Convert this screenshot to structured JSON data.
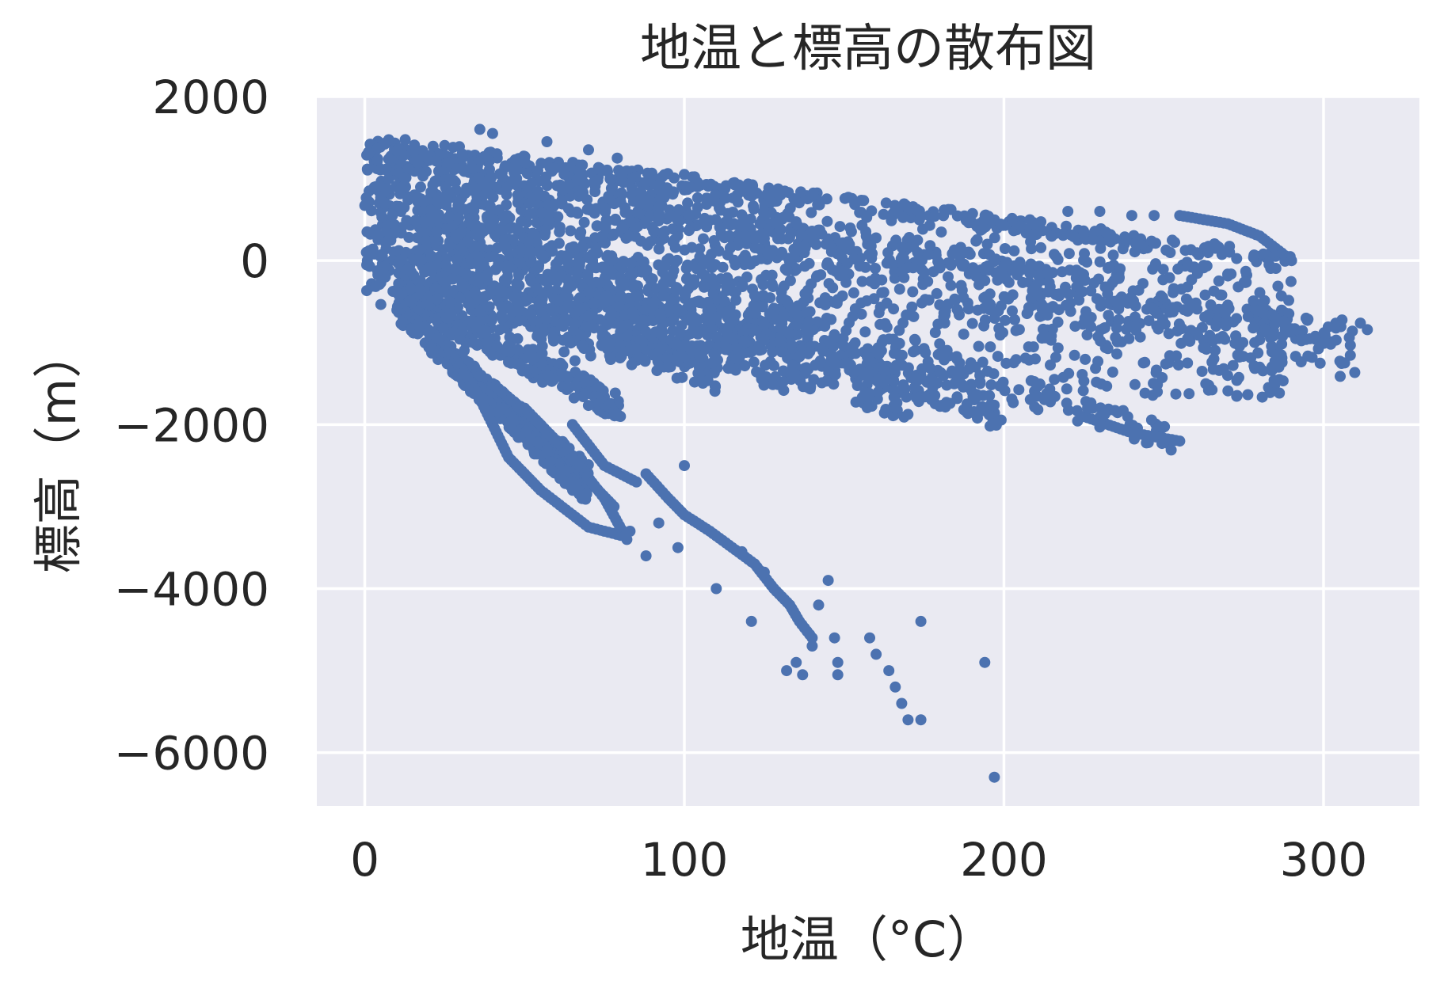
{
  "chart_data": {
    "type": "scatter",
    "title": "地温と標高の散布図",
    "xlabel": "地温（°C）",
    "ylabel": "標高（m）",
    "xlim": [
      -15,
      330
    ],
    "ylim": [
      -6650,
      2000
    ],
    "xticks": [
      0,
      100,
      200,
      300
    ],
    "yticks": [
      2000,
      0,
      -2000,
      -4000,
      -6000
    ],
    "xtick_labels": [
      "0",
      "100",
      "200",
      "300"
    ],
    "ytick_labels": [
      "2000",
      "0",
      "−2000",
      "−4000",
      "−6000"
    ],
    "grid": true,
    "legend": "none",
    "style": "seaborn-darkgrid",
    "colors": {
      "background": "#eaeaf2",
      "grid": "#ffffff",
      "marker": "#4c72b0",
      "text": "#262626"
    },
    "series": [
      {
        "points_description_note": "",
        "bands": [
          {
            "from": [
              0,
              1450
            ],
            "to": [
              290,
              0
            ],
            "width": 180
          },
          {
            "from": [
              0,
              1300
            ],
            "to": [
              315,
              -950
            ],
            "width": 350
          },
          {
            "from": [
              0,
              1100
            ],
            "to": [
              310,
              -1200
            ],
            "width": 500
          },
          {
            "from": [
              0,
              900
            ],
            "to": [
              255,
              -2200
            ],
            "width": 350
          },
          {
            "from": [
              5,
              600
            ],
            "to": [
              200,
              -1900
            ],
            "width": 350
          },
          {
            "from": [
              3,
              300
            ],
            "to": [
              170,
              -1700
            ],
            "width": 500
          },
          {
            "from": [
              5,
              0
            ],
            "to": [
              110,
              -1400
            ],
            "width": 450
          },
          {
            "from": [
              10,
              -400
            ],
            "to": [
              80,
              -1800
            ],
            "width": 350
          },
          {
            "from": [
              10,
              -600
            ],
            "to": [
              70,
              -2600
            ],
            "width": 250
          },
          {
            "from": [
              20,
              -1000
            ],
            "to": [
              70,
              -2900
            ],
            "width": 200
          }
        ],
        "curves": [
          [
            [
              12,
              -600
            ],
            [
              25,
              -1000
            ],
            [
              35,
              -1600
            ],
            [
              40,
              -2000
            ],
            [
              45,
              -2400
            ],
            [
              55,
              -2800
            ],
            [
              65,
              -3100
            ],
            [
              70,
              -3250
            ],
            [
              80,
              -3350
            ]
          ],
          [
            [
              40,
              -1500
            ],
            [
              55,
              -2000
            ],
            [
              68,
              -2600
            ],
            [
              78,
              -3000
            ]
          ],
          [
            [
              50,
              -1800
            ],
            [
              65,
              -2400
            ],
            [
              75,
              -2900
            ],
            [
              82,
              -3400
            ]
          ],
          [
            [
              65,
              -2000
            ],
            [
              75,
              -2500
            ],
            [
              85,
              -2700
            ]
          ],
          [
            [
              70,
              -1600
            ],
            [
              80,
              -1900
            ]
          ],
          [
            [
              88,
              -2600
            ],
            [
              95,
              -2900
            ],
            [
              100,
              -3100
            ],
            [
              108,
              -3300
            ],
            [
              115,
              -3500
            ],
            [
              122,
              -3700
            ],
            [
              128,
              -4000
            ],
            [
              133,
              -4200
            ],
            [
              136,
              -4400
            ],
            [
              140,
              -4600
            ]
          ],
          [
            [
              225,
              -1900
            ],
            [
              240,
              -2100
            ],
            [
              255,
              -2200
            ]
          ],
          [
            [
              255,
              550
            ],
            [
              270,
              450
            ],
            [
              280,
              300
            ],
            [
              290,
              0
            ]
          ]
        ],
        "scatter": [
          [
            36,
            1600
          ],
          [
            40,
            1550
          ],
          [
            57,
            1450
          ],
          [
            70,
            1350
          ],
          [
            79,
            1250
          ],
          [
            100,
            1050
          ],
          [
            220,
            600
          ],
          [
            230,
            600
          ],
          [
            240,
            550
          ],
          [
            247,
            550
          ],
          [
            17,
            -800
          ],
          [
            100,
            -2500
          ],
          [
            83,
            -3300
          ],
          [
            88,
            -3600
          ],
          [
            92,
            -3200
          ],
          [
            98,
            -3500
          ],
          [
            110,
            -4000
          ],
          [
            121,
            -4400
          ],
          [
            118,
            -3550
          ],
          [
            125,
            -3800
          ],
          [
            132,
            -5000
          ],
          [
            135,
            -4900
          ],
          [
            145,
            -3900
          ],
          [
            142,
            -4200
          ],
          [
            147,
            -4600
          ],
          [
            148,
            -4900
          ],
          [
            148,
            -5050
          ],
          [
            137,
            -5050
          ],
          [
            140,
            -4700
          ],
          [
            158,
            -4600
          ],
          [
            160,
            -4800
          ],
          [
            164,
            -5000
          ],
          [
            166,
            -5200
          ],
          [
            168,
            -5400
          ],
          [
            170,
            -5600
          ],
          [
            174,
            -5600
          ],
          [
            174,
            -4400
          ],
          [
            194,
            -4900
          ],
          [
            197,
            -6300
          ],
          [
            248,
            -1600
          ],
          [
            280,
            -1300
          ],
          [
            262,
            -1350
          ],
          [
            270,
            -1400
          ],
          [
            286,
            -1300
          ]
        ]
      }
    ]
  }
}
